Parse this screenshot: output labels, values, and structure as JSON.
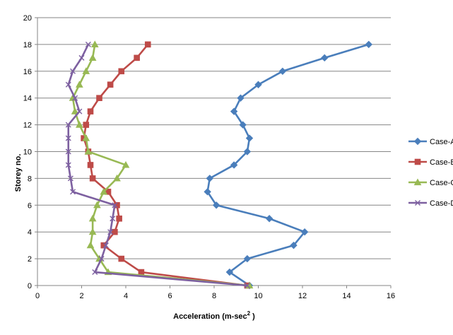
{
  "chart_data": {
    "type": "line",
    "xlabel": "Acceleration (m-sec",
    "xlabel_sup": "2",
    "ylabel": "Storey no.",
    "xlim": [
      0,
      16
    ],
    "ylim": [
      0,
      20
    ],
    "x_ticks": [
      0,
      2,
      4,
      6,
      8,
      10,
      12,
      14,
      16
    ],
    "y_ticks": [
      0,
      2,
      4,
      6,
      8,
      10,
      12,
      14,
      16,
      18,
      20
    ],
    "grid": "horizontal",
    "legend_position": "right",
    "series": [
      {
        "name": "Case-A",
        "color": "#4a7ebb",
        "marker": "diamond",
        "points": [
          [
            9.6,
            0
          ],
          [
            8.7,
            1
          ],
          [
            9.5,
            2
          ],
          [
            11.6,
            3
          ],
          [
            12.1,
            4
          ],
          [
            10.5,
            5
          ],
          [
            8.1,
            6
          ],
          [
            7.7,
            7
          ],
          [
            7.8,
            8
          ],
          [
            8.9,
            9
          ],
          [
            9.5,
            10
          ],
          [
            9.6,
            11
          ],
          [
            9.3,
            12
          ],
          [
            8.9,
            13
          ],
          [
            9.2,
            14
          ],
          [
            10,
            15
          ],
          [
            11.1,
            16
          ],
          [
            13,
            17
          ],
          [
            15,
            18
          ]
        ]
      },
      {
        "name": "Case-B",
        "color": "#be4b48",
        "marker": "square",
        "points": [
          [
            9.5,
            0
          ],
          [
            4.7,
            1
          ],
          [
            3.8,
            2
          ],
          [
            3,
            3
          ],
          [
            3.5,
            4
          ],
          [
            3.7,
            5
          ],
          [
            3.6,
            6
          ],
          [
            3.2,
            7
          ],
          [
            2.5,
            8
          ],
          [
            2.4,
            9
          ],
          [
            2.3,
            10
          ],
          [
            2.1,
            11
          ],
          [
            2.2,
            12
          ],
          [
            2.4,
            13
          ],
          [
            2.8,
            14
          ],
          [
            3.3,
            15
          ],
          [
            3.8,
            16
          ],
          [
            4.5,
            17
          ],
          [
            5,
            18
          ]
        ]
      },
      {
        "name": "Case-C",
        "color": "#98b954",
        "marker": "triangle",
        "points": [
          [
            9.6,
            0
          ],
          [
            3.2,
            1
          ],
          [
            2.8,
            2
          ],
          [
            2.4,
            3
          ],
          [
            2.5,
            4
          ],
          [
            2.5,
            5
          ],
          [
            2.7,
            6
          ],
          [
            3,
            7
          ],
          [
            3.6,
            8
          ],
          [
            4,
            9
          ],
          [
            2.3,
            10
          ],
          [
            2.2,
            11
          ],
          [
            1.9,
            12
          ],
          [
            1.7,
            13
          ],
          [
            1.6,
            14
          ],
          [
            1.9,
            15
          ],
          [
            2.2,
            16
          ],
          [
            2.5,
            17
          ],
          [
            2.6,
            18
          ]
        ]
      },
      {
        "name": "Case-D",
        "color": "#7d60a0",
        "marker": "x",
        "points": [
          [
            9.5,
            0
          ],
          [
            2.6,
            1
          ],
          [
            2.9,
            2
          ],
          [
            3.1,
            3
          ],
          [
            3.3,
            4
          ],
          [
            3.4,
            5
          ],
          [
            3.5,
            6
          ],
          [
            1.6,
            7
          ],
          [
            1.5,
            8
          ],
          [
            1.4,
            9
          ],
          [
            1.4,
            10
          ],
          [
            1.4,
            11
          ],
          [
            1.4,
            12
          ],
          [
            1.9,
            13
          ],
          [
            1.7,
            14
          ],
          [
            1.4,
            15
          ],
          [
            1.6,
            16
          ],
          [
            2,
            17
          ],
          [
            2.3,
            18
          ]
        ]
      }
    ]
  }
}
